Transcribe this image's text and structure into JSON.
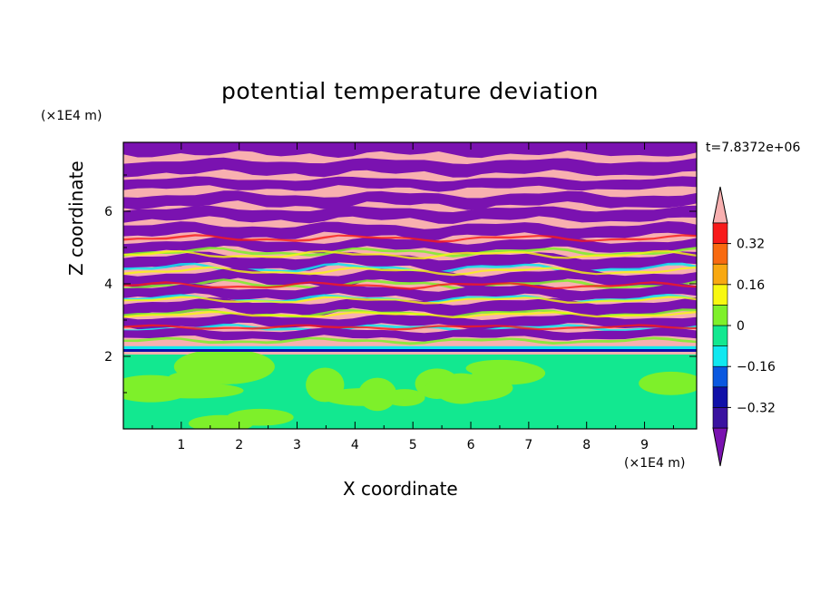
{
  "chart_data": {
    "type": "heatmap",
    "title": "potential temperature deviation",
    "xlabel": "X coordinate",
    "ylabel": "Z coordinate",
    "x_unit": "(×1E4 m)",
    "y_unit": "(×1E4 m)",
    "time_label": "t=7.8372e+06",
    "xlim": [
      0,
      9.9
    ],
    "ylim": [
      0,
      7.9
    ],
    "x_ticks": [
      1,
      2,
      3,
      4,
      5,
      6,
      7,
      8,
      9
    ],
    "y_ticks": [
      2,
      4,
      6
    ],
    "colorbar": {
      "levels": [
        -0.48,
        -0.4,
        -0.32,
        -0.24,
        -0.16,
        -0.08,
        0,
        0.08,
        0.16,
        0.24,
        0.32,
        0.4,
        0.48
      ],
      "colors": [
        "#7a12b0",
        "#3a12a0",
        "#1010a8",
        "#0a58e0",
        "#10e8f0",
        "#12e890",
        "#7ef02a",
        "#f8f810",
        "#f8a810",
        "#f86a10",
        "#f81a1a",
        "#f8b0b0"
      ],
      "labels": [
        "0.32",
        "0.16",
        "0",
        "−0.16",
        "−0.32"
      ],
      "label_values": [
        0.32,
        0.16,
        0,
        -0.16,
        -0.32
      ]
    },
    "colors": {
      "pink": "#f8b0b0",
      "purple": "#7a12b0",
      "green": "#7ef02a",
      "teal": "#12e890"
    }
  }
}
